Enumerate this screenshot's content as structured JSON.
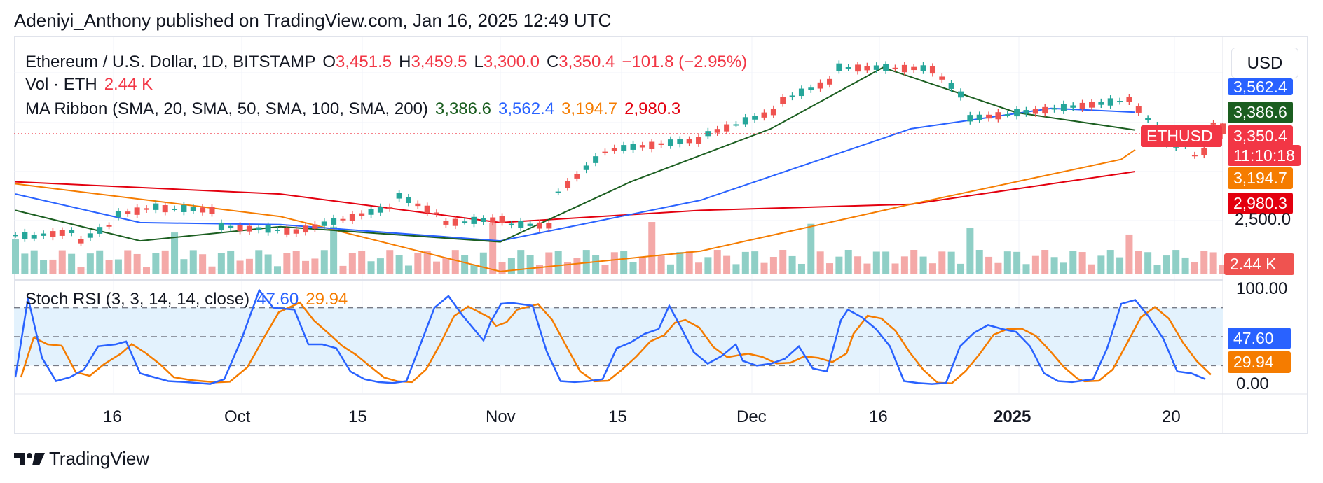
{
  "header": {
    "text": "Adeniyi_Anthony published on TradingView.com, Jan 16, 2025 12:49 UTC"
  },
  "currency_button": "USD",
  "legend": {
    "main": {
      "pair": "Ethereum / U.S. Dollar, 1D, BITSTAMP",
      "o_label": "O",
      "o_value": "3,451.5",
      "h_label": "H",
      "h_value": "3,459.5",
      "l_label": "L",
      "l_value": "3,300.0",
      "c_label": "C",
      "c_value": "3,350.4",
      "change": "−101.8 (−2.95%)"
    },
    "vol": {
      "label": "Vol · ETH",
      "value": "2.44 K"
    },
    "ma": {
      "label": "MA Ribbon (SMA, 20, SMA, 50, SMA, 100, SMA, 200)",
      "v20": "3,386.6",
      "v50": "3,562.4",
      "v100": "3,194.7",
      "v200": "2,980.3"
    },
    "stoch": {
      "label": "Stoch RSI (3, 3, 14, 14, close)",
      "k": "47.60",
      "d": "29.94"
    }
  },
  "price_scale": {
    "labels": [
      {
        "text": "3,562.4",
        "color": "#2962ff"
      },
      {
        "text": "3,386.6",
        "color": "#1b5e20"
      },
      {
        "text": "3,350.4",
        "color": "#f23645"
      },
      {
        "text": "11:10:18",
        "color": "#f23645"
      },
      {
        "text": "3,194.7",
        "color": "#f57c00"
      },
      {
        "text": "2,980.3",
        "color": "#e3000f"
      },
      {
        "text": "2,500.0",
        "color": "#131722"
      },
      {
        "text": "2.44 K",
        "color": "#ef5350"
      }
    ],
    "symbol_tag": "ETHUSD"
  },
  "stoch_scale": {
    "labels": [
      {
        "text": "100.00"
      },
      {
        "text": "47.60",
        "color": "#2962ff"
      },
      {
        "text": "29.94",
        "color": "#f57c00"
      },
      {
        "text": "0.00"
      }
    ]
  },
  "time_axis": [
    "16",
    "Oct",
    "15",
    "Nov",
    "15",
    "Dec",
    "16",
    "2025",
    "20"
  ],
  "footer": {
    "brand": "TradingView"
  },
  "colors": {
    "up": "#26a69a",
    "down": "#ef5350",
    "ma20": "#1b5e20",
    "ma50": "#2962ff",
    "ma100": "#f57c00",
    "ma200": "#e3000f",
    "vol_up": "#8fcfc6",
    "vol_down": "#f4a9a8",
    "stoch_k": "#2962ff",
    "stoch_d": "#f57c00",
    "stoch_band": "#e3f2fd"
  },
  "chart_data": {
    "type": "candlestick",
    "symbol": "ETHUSD",
    "interval": "1D",
    "x_range": [
      "2024-09-09",
      "2025-01-16"
    ],
    "last_candle": {
      "date": "2025-01-16",
      "open": 3451.5,
      "high": 3459.5,
      "low": 3300.0,
      "close": 3350.4,
      "volume_k": 2.44
    },
    "candles": [
      {
        "date": "2024-09-09",
        "open": 2300,
        "high": 2380,
        "low": 2270,
        "close": 2360
      },
      {
        "date": "2024-09-12",
        "open": 2330,
        "high": 2400,
        "low": 2300,
        "close": 2360
      },
      {
        "date": "2024-09-16",
        "open": 2400,
        "high": 2420,
        "low": 2270,
        "close": 2300
      },
      {
        "date": "2024-09-20",
        "open": 2500,
        "high": 2580,
        "low": 2460,
        "close": 2560
      },
      {
        "date": "2024-09-25",
        "open": 2650,
        "high": 2700,
        "low": 2600,
        "close": 2620
      },
      {
        "date": "2024-10-01",
        "open": 2600,
        "high": 2620,
        "low": 2420,
        "close": 2440
      },
      {
        "date": "2024-10-10",
        "open": 2390,
        "high": 2440,
        "low": 2380,
        "close": 2420
      },
      {
        "date": "2024-10-20",
        "open": 2650,
        "high": 2760,
        "low": 2620,
        "close": 2740
      },
      {
        "date": "2024-10-25",
        "open": 2530,
        "high": 2550,
        "low": 2460,
        "close": 2480
      },
      {
        "date": "2024-11-01",
        "open": 2520,
        "high": 2540,
        "low": 2430,
        "close": 2460
      },
      {
        "date": "2024-11-06",
        "open": 2450,
        "high": 2800,
        "low": 2420,
        "close": 2780
      },
      {
        "date": "2024-11-12",
        "open": 3250,
        "high": 3440,
        "low": 3180,
        "close": 3200
      },
      {
        "date": "2024-11-22",
        "open": 3300,
        "high": 3400,
        "low": 3280,
        "close": 3350
      },
      {
        "date": "2024-11-30",
        "open": 3600,
        "high": 3700,
        "low": 3550,
        "close": 3680
      },
      {
        "date": "2024-12-06",
        "open": 3900,
        "high": 4060,
        "low": 3870,
        "close": 4000
      },
      {
        "date": "2024-12-16",
        "open": 3990,
        "high": 4100,
        "low": 3950,
        "close": 3980
      },
      {
        "date": "2024-12-20",
        "open": 3650,
        "high": 3700,
        "low": 3100,
        "close": 3500
      },
      {
        "date": "2025-01-06",
        "open": 3680,
        "high": 3740,
        "low": 3640,
        "close": 3690
      },
      {
        "date": "2025-01-10",
        "open": 3300,
        "high": 3320,
        "low": 3180,
        "close": 3260
      },
      {
        "date": "2025-01-13",
        "open": 3220,
        "high": 3300,
        "low": 2920,
        "close": 3140
      },
      {
        "date": "2025-01-15",
        "open": 3220,
        "high": 3480,
        "low": 3200,
        "close": 3450
      },
      {
        "date": "2025-01-16",
        "open": 3451.5,
        "high": 3459.5,
        "low": 3300.0,
        "close": 3350.4
      }
    ],
    "moving_averages": {
      "SMA20": 3386.6,
      "SMA50": 3562.4,
      "SMA100": 3194.7,
      "SMA200": 2980.3
    },
    "stoch_rsi": {
      "k": 47.6,
      "d": 29.94,
      "upper_band": 80,
      "lower_band": 20,
      "range": [
        0,
        100
      ]
    },
    "y_axis_labels": [
      "2,500.0"
    ],
    "x_axis_labels": [
      "16",
      "Oct",
      "15",
      "Nov",
      "15",
      "Dec",
      "16",
      "2025",
      "20"
    ]
  }
}
